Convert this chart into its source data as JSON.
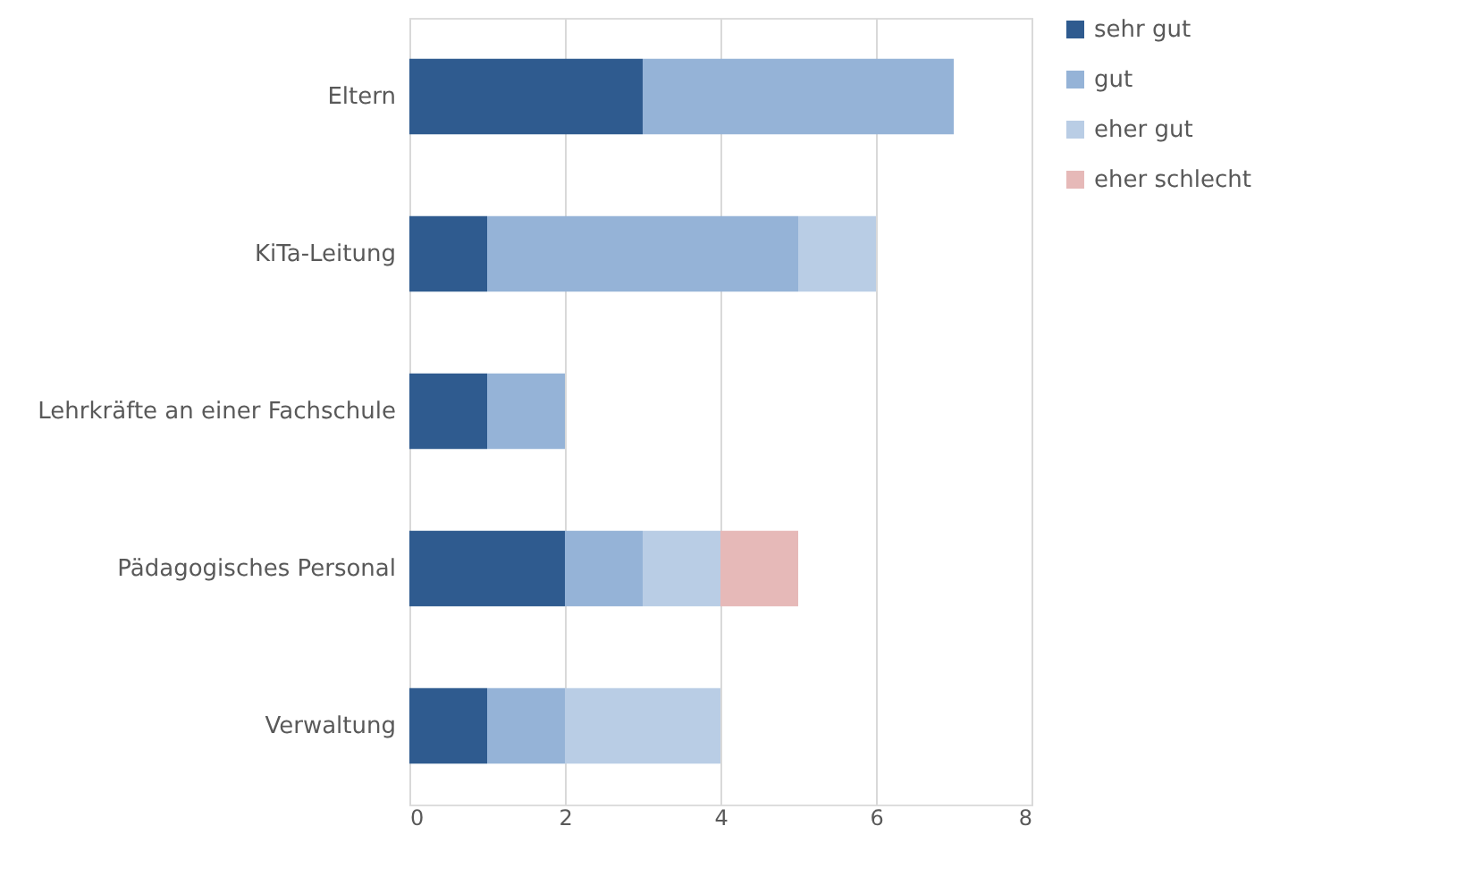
{
  "chart_data": {
    "type": "bar",
    "orientation": "horizontal",
    "stacked": true,
    "categories": [
      "Eltern",
      "KiTa-Leitung",
      "Lehrkräfte an einer Fachschule",
      "Pädagogisches Personal",
      "Verwaltung"
    ],
    "series": [
      {
        "name": "sehr gut",
        "color": "#2f5b8f",
        "values": [
          3,
          1,
          1,
          2,
          1
        ]
      },
      {
        "name": "gut",
        "color": "#95b3d7",
        "values": [
          4,
          4,
          1,
          1,
          1
        ]
      },
      {
        "name": "eher gut",
        "color": "#b9cde5",
        "values": [
          null,
          1,
          null,
          1,
          2
        ]
      },
      {
        "name": "eher schlecht",
        "color": "#e6b9b8",
        "values": [
          null,
          null,
          null,
          1,
          null
        ]
      }
    ],
    "xlim": [
      0,
      8
    ],
    "xticks": [
      0,
      2,
      4,
      6,
      8
    ],
    "grid": "x",
    "legend": "right"
  }
}
